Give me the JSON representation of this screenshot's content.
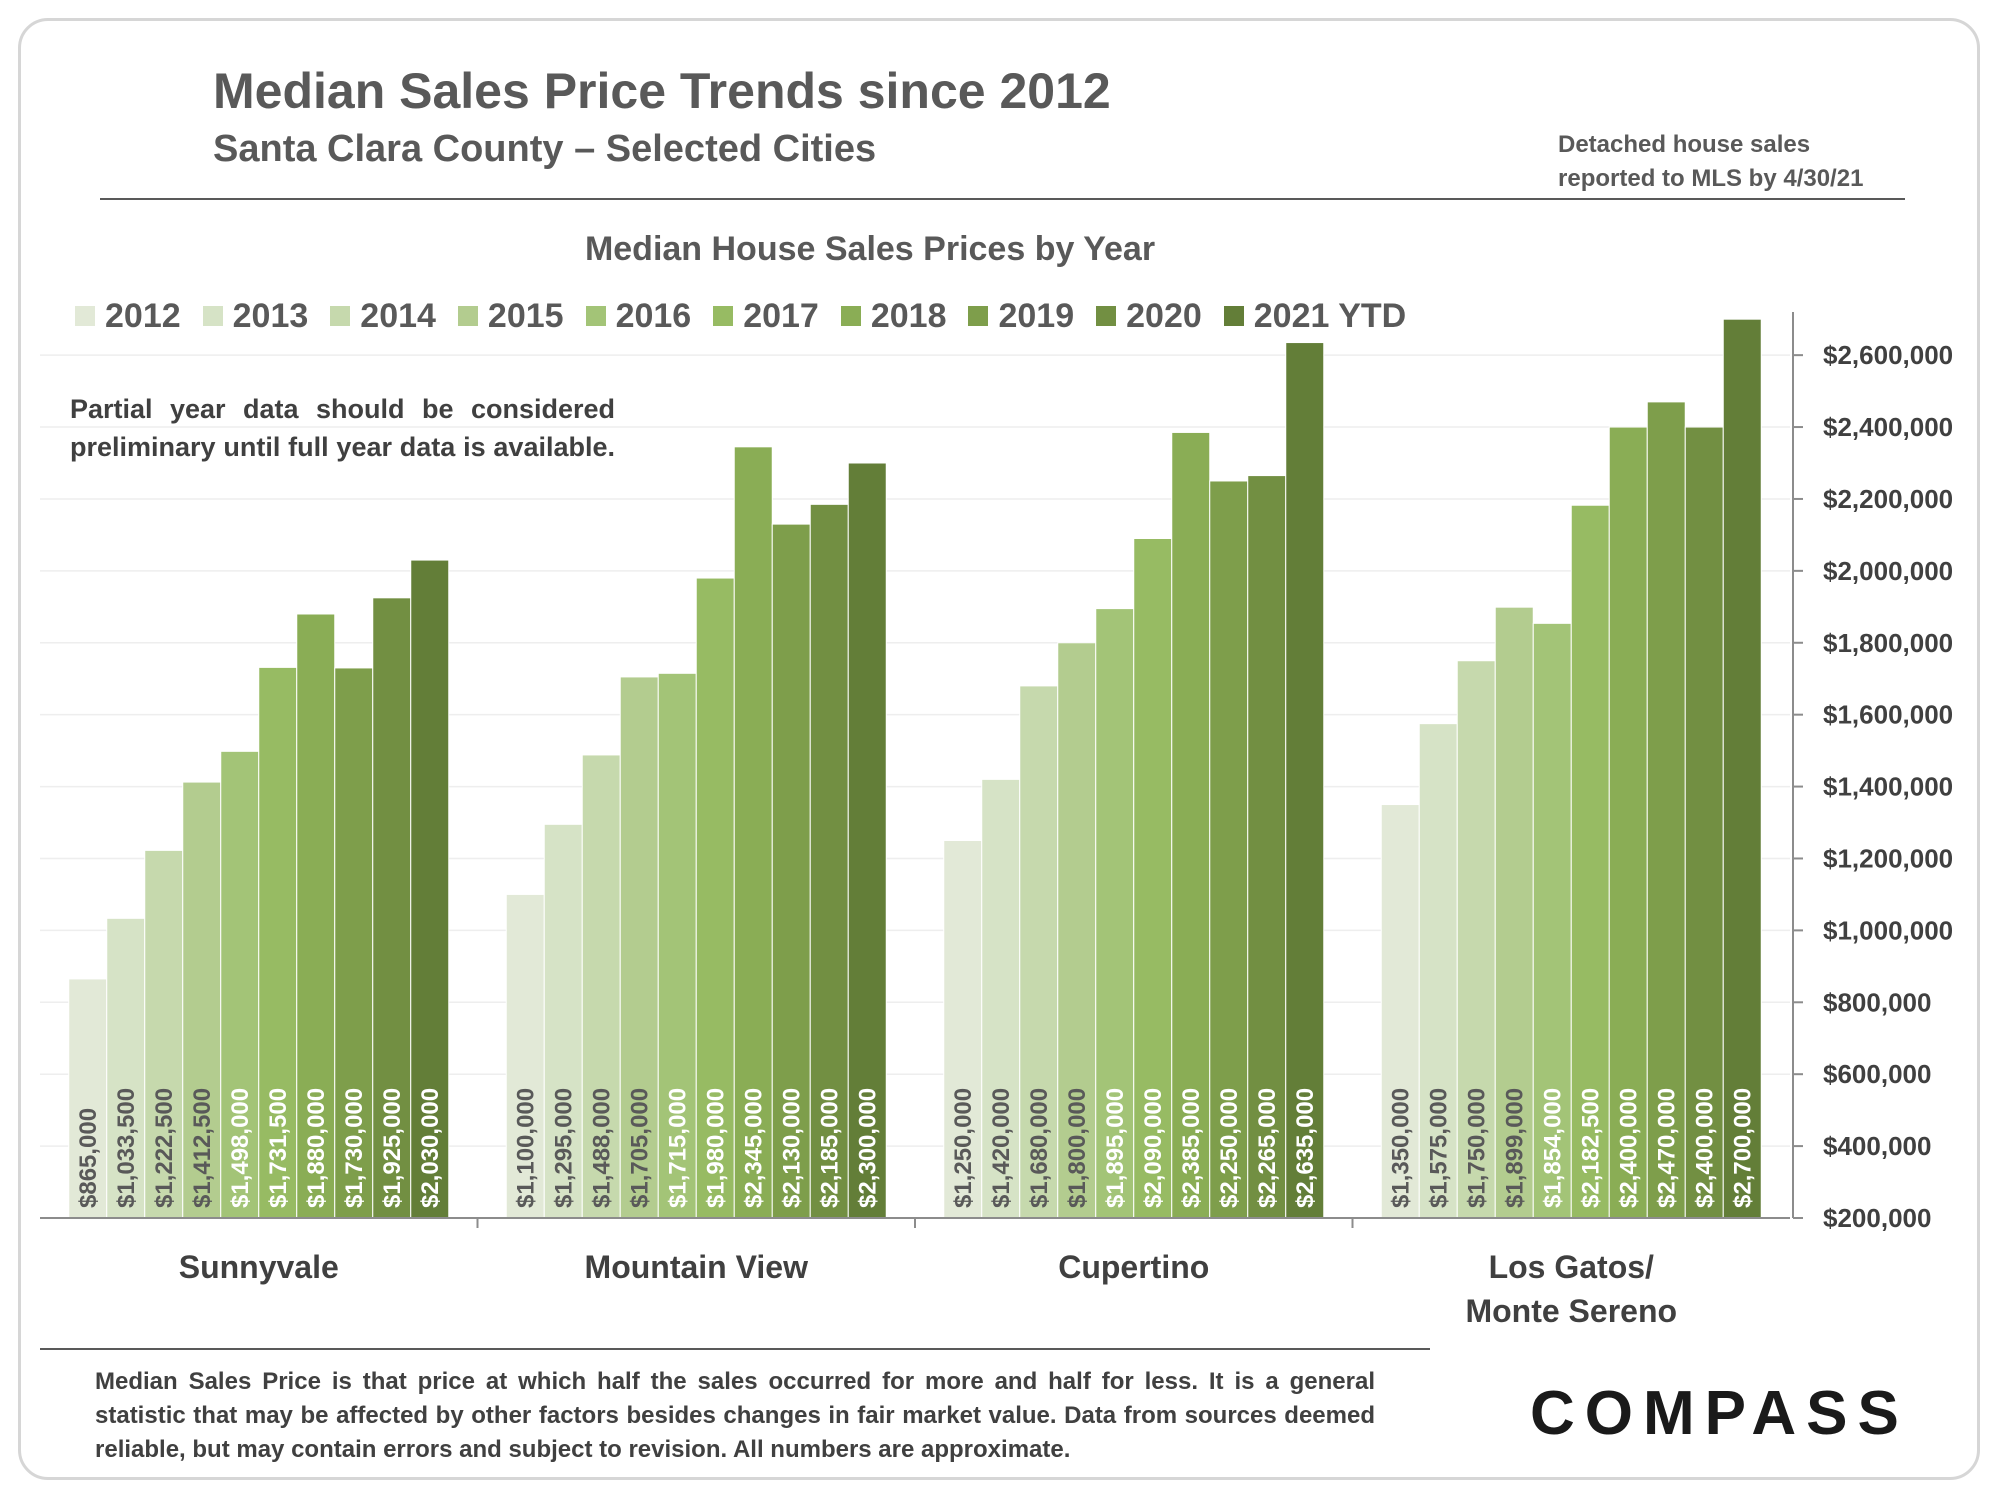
{
  "header": {
    "title": "Median Sales Price Trends since 2012",
    "subtitle": "Santa Clara County – Selected Cities",
    "note_line1": "Detached house sales",
    "note_line2": "reported to MLS by 4/30/21"
  },
  "partial_note": "Partial year data should be considered preliminary until full year data is available.",
  "disclaimer": "Median Sales Price is that price at which half the sales occurred for more and half for less. It is a general statistic that may be affected by other factors besides changes in fair market value. Data from sources deemed reliable, but may contain errors and subject to revision.  All numbers are approximate.",
  "logo": "COMPASS",
  "chart_data": {
    "type": "bar",
    "title": "Median House Sales Prices by Year",
    "categories": [
      "Sunnyvale",
      "Mountain View",
      "Cupertino",
      "Los Gatos/\nMonte Sereno"
    ],
    "series": [
      {
        "name": "2012",
        "color": "#e2e9d7",
        "values": [
          865000,
          1100000,
          1250000,
          1350000
        ]
      },
      {
        "name": "2013",
        "color": "#d6e3c6",
        "values": [
          1033500,
          1295000,
          1420000,
          1575000
        ]
      },
      {
        "name": "2014",
        "color": "#c6d9ad",
        "values": [
          1222500,
          1488000,
          1680000,
          1750000
        ]
      },
      {
        "name": "2015",
        "color": "#b3cc8f",
        "values": [
          1412500,
          1705000,
          1800000,
          1899000
        ]
      },
      {
        "name": "2016",
        "color": "#a3c477",
        "values": [
          1498000,
          1715000,
          1895000,
          1854000
        ]
      },
      {
        "name": "2017",
        "color": "#97bb63",
        "values": [
          1731500,
          1980000,
          2090000,
          2182500
        ]
      },
      {
        "name": "2018",
        "color": "#8aad55",
        "values": [
          1880000,
          2345000,
          2385000,
          2400000
        ]
      },
      {
        "name": "2019",
        "color": "#7e9e4b",
        "values": [
          1730000,
          2130000,
          2250000,
          2470000
        ]
      },
      {
        "name": "2020",
        "color": "#728f42",
        "values": [
          1925000,
          2185000,
          2265000,
          2400000
        ]
      },
      {
        "name": "2021 YTD",
        "color": "#637e38",
        "values": [
          2030000,
          2300000,
          2635000,
          2700000
        ]
      }
    ],
    "data_labels": [
      [
        "$865,000",
        "$1,033,500",
        "$1,222,500",
        "$1,412,500",
        "$1,498,000",
        "$1,731,500",
        "$1,880,000",
        "$1,730,000",
        "$1,925,000",
        "$2,030,000"
      ],
      [
        "$1,100,000",
        "$1,295,000",
        "$1,488,000",
        "$1,705,000",
        "$1,715,000",
        "$1,980,000",
        "$2,345,000",
        "$2,130,000",
        "$2,185,000",
        "$2,300,000"
      ],
      [
        "$1,250,000",
        "$1,420,000",
        "$1,680,000",
        "$1,800,000",
        "$1,895,000",
        "$2,090,000",
        "$2,385,000",
        "$2,250,000",
        "$2,265,000",
        "$2,635,000"
      ],
      [
        "$1,350,000",
        "$1,575,000",
        "$1,750,000",
        "$1,899,000",
        "$1,854,000",
        "$2,182,500",
        "$2,400,000",
        "$2,470,000",
        "$2,400,000",
        "$2,700,000"
      ]
    ],
    "y_ticks": [
      200000,
      400000,
      600000,
      800000,
      1000000,
      1200000,
      1400000,
      1600000,
      1800000,
      2000000,
      2200000,
      2400000,
      2600000
    ],
    "y_tick_labels": [
      "$200,000",
      "$400,000",
      "$600,000",
      "$800,000",
      "$1,000,000",
      "$1,200,000",
      "$1,400,000",
      "$1,600,000",
      "$1,800,000",
      "$2,000,000",
      "$2,200,000",
      "$2,400,000",
      "$2,600,000"
    ],
    "ylim": [
      200000,
      2720000
    ],
    "y_axis_position": "right",
    "grid": true,
    "legend_position": "top"
  }
}
